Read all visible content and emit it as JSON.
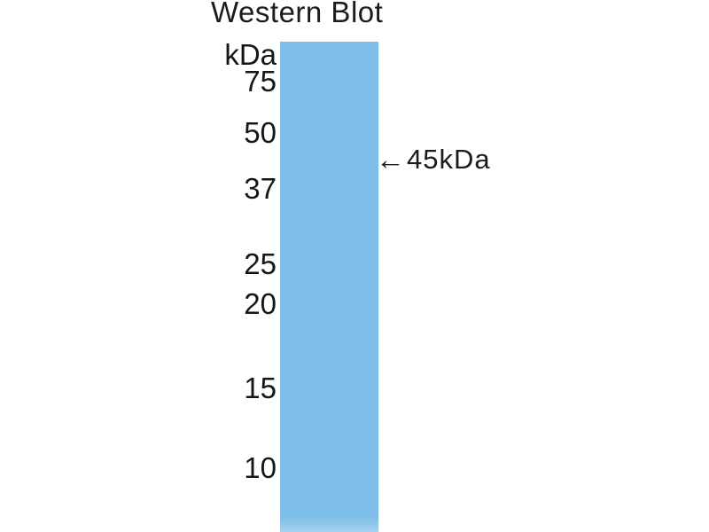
{
  "title": "Western Blot",
  "ladder": {
    "unit_label": "kDa",
    "items": [
      "75",
      "50",
      "37",
      "25",
      "20",
      "15",
      "10"
    ]
  },
  "annotation": {
    "arrow": "←",
    "label": "45kDa"
  },
  "colors": {
    "lane": "#7dbfea",
    "band": "#2a4c66",
    "text": "#1b1b1b",
    "background": "#ffffff"
  }
}
